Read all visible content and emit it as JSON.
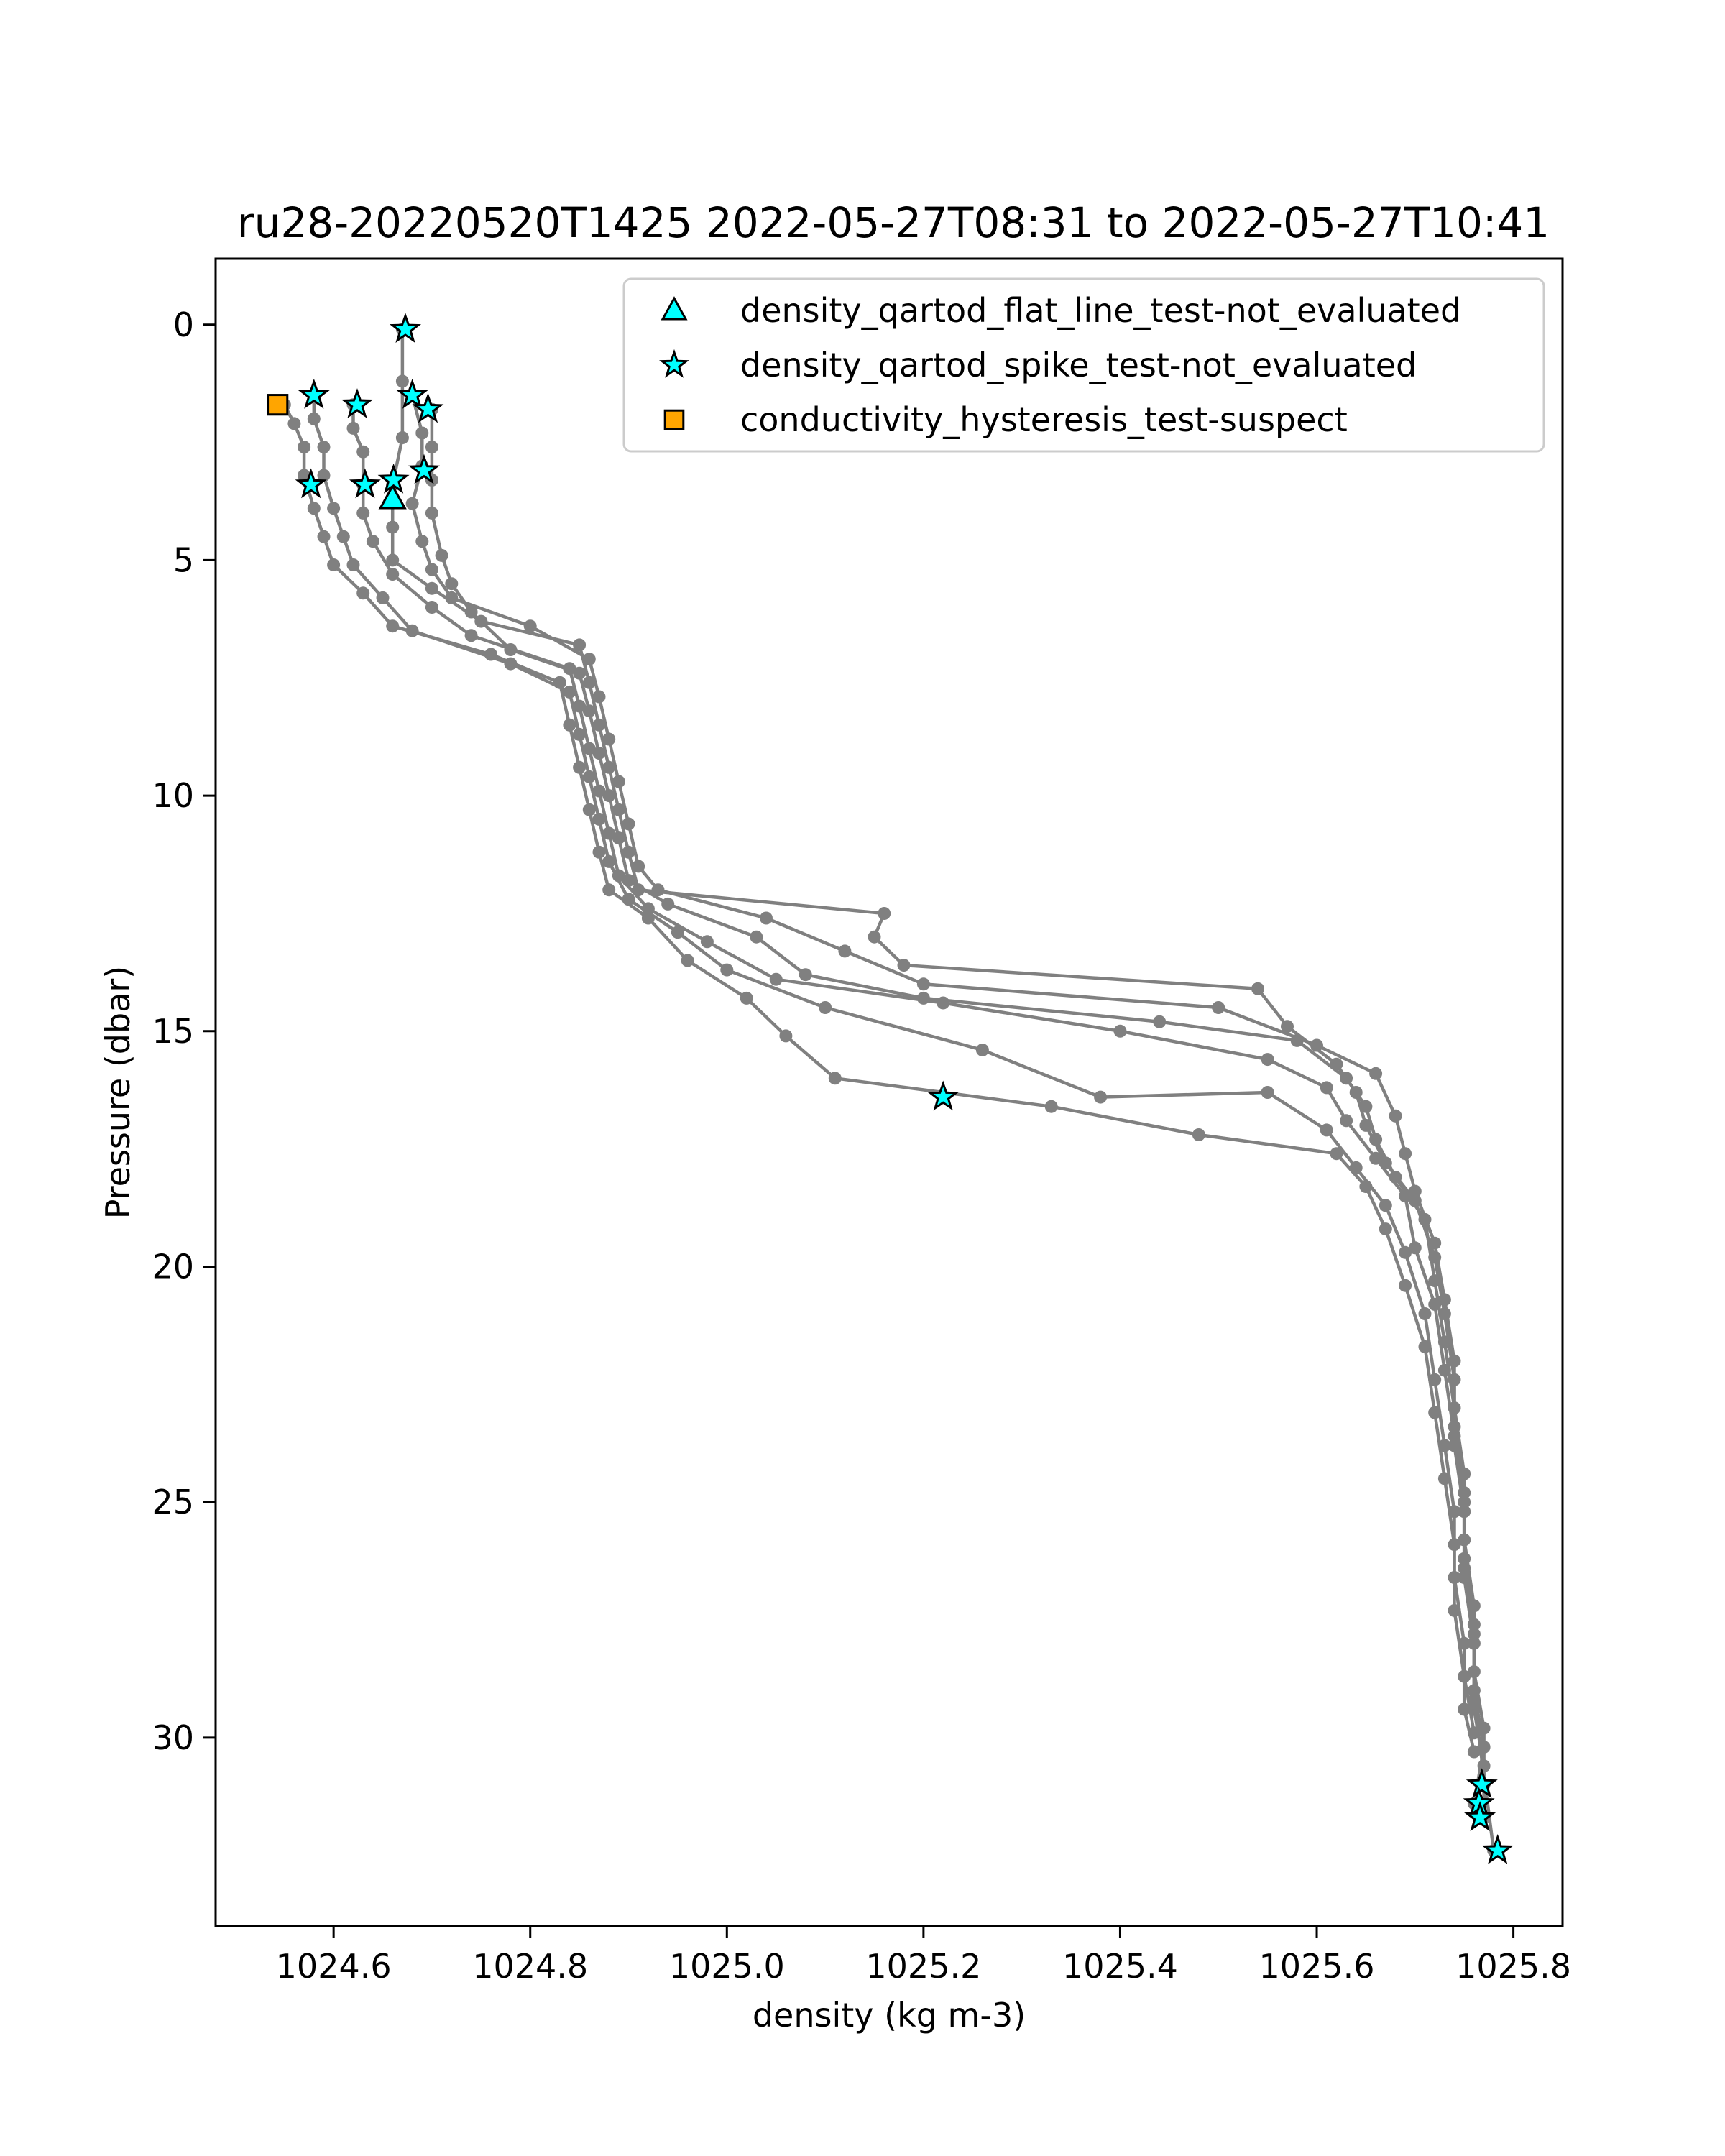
{
  "chart_data": {
    "type": "scatter",
    "title": "ru28-20220520T1425 2022-05-27T08:31 to 2022-05-27T10:41",
    "xlabel": "density (kg m-3)",
    "ylabel": "Pressure (dbar)",
    "xlim": [
      1024.48,
      1025.85
    ],
    "ylim": [
      34.0,
      -1.4
    ],
    "y_inverted": true,
    "xticks": [
      1024.6,
      1024.8,
      1025.0,
      1025.2,
      1025.4,
      1025.6,
      1025.8
    ],
    "xtick_labels": [
      "1024.6",
      "1024.8",
      "1025.0",
      "1025.2",
      "1025.4",
      "1025.6",
      "1025.8"
    ],
    "yticks": [
      0,
      5,
      10,
      15,
      20,
      25,
      30
    ],
    "ytick_labels": [
      "0",
      "5",
      "10",
      "15",
      "20",
      "25",
      "30"
    ],
    "grid": false,
    "legend_position": "top-right",
    "profile_color": "#808080",
    "profiles": [
      [
        [
          1024.67,
          0.1
        ],
        [
          1024.67,
          1.2
        ],
        [
          1024.67,
          2.4
        ],
        [
          1024.66,
          3.4
        ],
        [
          1024.66,
          4.3
        ],
        [
          1024.66,
          5.0
        ],
        [
          1024.7,
          5.6
        ],
        [
          1024.75,
          6.3
        ],
        [
          1024.85,
          6.8
        ],
        [
          1024.86,
          7.6
        ],
        [
          1024.87,
          8.5
        ],
        [
          1024.88,
          9.4
        ],
        [
          1024.89,
          10.3
        ],
        [
          1024.9,
          11.2
        ],
        [
          1024.91,
          12.0
        ],
        [
          1025.16,
          12.5
        ],
        [
          1025.15,
          13.0
        ],
        [
          1025.18,
          13.6
        ],
        [
          1025.54,
          14.1
        ],
        [
          1025.57,
          14.9
        ],
        [
          1025.62,
          15.7
        ],
        [
          1025.64,
          16.3
        ],
        [
          1025.65,
          17.0
        ],
        [
          1025.67,
          17.8
        ],
        [
          1025.7,
          18.6
        ],
        [
          1025.72,
          19.8
        ],
        [
          1025.73,
          21.0
        ],
        [
          1025.74,
          22.4
        ],
        [
          1025.74,
          23.8
        ],
        [
          1025.75,
          25.2
        ],
        [
          1025.75,
          26.6
        ],
        [
          1025.76,
          28.0
        ],
        [
          1025.76,
          29.4
        ],
        [
          1025.77,
          30.6
        ],
        [
          1025.77,
          31.0
        ]
      ],
      [
        [
          1024.68,
          1.5
        ],
        [
          1024.69,
          2.3
        ],
        [
          1024.69,
          3.0
        ],
        [
          1024.68,
          3.8
        ],
        [
          1024.69,
          4.6
        ],
        [
          1024.7,
          5.2
        ],
        [
          1024.72,
          5.8
        ],
        [
          1024.8,
          6.4
        ],
        [
          1024.86,
          7.1
        ],
        [
          1024.87,
          7.9
        ],
        [
          1024.88,
          8.8
        ],
        [
          1024.89,
          9.7
        ],
        [
          1024.9,
          10.6
        ],
        [
          1024.91,
          11.5
        ],
        [
          1024.93,
          12.0
        ],
        [
          1025.04,
          12.6
        ],
        [
          1025.12,
          13.3
        ],
        [
          1025.2,
          14.0
        ],
        [
          1025.5,
          14.5
        ],
        [
          1025.6,
          15.3
        ],
        [
          1025.66,
          15.9
        ],
        [
          1025.68,
          16.8
        ],
        [
          1025.69,
          17.6
        ],
        [
          1025.7,
          18.4
        ],
        [
          1025.72,
          19.5
        ],
        [
          1025.73,
          20.7
        ],
        [
          1025.74,
          22.0
        ],
        [
          1025.74,
          23.4
        ],
        [
          1025.75,
          24.8
        ],
        [
          1025.75,
          26.2
        ],
        [
          1025.76,
          27.6
        ],
        [
          1025.76,
          29.0
        ],
        [
          1025.77,
          30.2
        ],
        [
          1025.76,
          31.4
        ]
      ],
      [
        [
          1024.7,
          1.8
        ],
        [
          1024.7,
          2.6
        ],
        [
          1024.7,
          3.3
        ],
        [
          1024.7,
          4.0
        ],
        [
          1024.71,
          4.9
        ],
        [
          1024.72,
          5.5
        ],
        [
          1024.74,
          6.1
        ],
        [
          1024.78,
          6.9
        ],
        [
          1024.85,
          7.4
        ],
        [
          1024.86,
          8.2
        ],
        [
          1024.87,
          9.1
        ],
        [
          1024.88,
          10.0
        ],
        [
          1024.89,
          10.9
        ],
        [
          1024.9,
          11.8
        ],
        [
          1024.94,
          12.3
        ],
        [
          1025.03,
          13.0
        ],
        [
          1025.08,
          13.8
        ],
        [
          1025.2,
          14.3
        ],
        [
          1025.44,
          14.8
        ],
        [
          1025.58,
          15.2
        ],
        [
          1025.63,
          16.0
        ],
        [
          1025.65,
          16.6
        ],
        [
          1025.66,
          17.3
        ],
        [
          1025.68,
          18.1
        ],
        [
          1025.71,
          19.0
        ],
        [
          1025.72,
          20.3
        ],
        [
          1025.73,
          21.6
        ],
        [
          1025.74,
          23.0
        ],
        [
          1025.75,
          24.4
        ],
        [
          1025.75,
          25.8
        ],
        [
          1025.76,
          27.2
        ],
        [
          1025.76,
          28.6
        ],
        [
          1025.77,
          29.8
        ],
        [
          1025.77,
          31.7
        ]
      ],
      [
        [
          1024.62,
          1.7
        ],
        [
          1024.62,
          2.2
        ],
        [
          1024.63,
          2.7
        ],
        [
          1024.63,
          3.4
        ],
        [
          1024.63,
          4.0
        ],
        [
          1024.64,
          4.6
        ],
        [
          1024.66,
          5.3
        ],
        [
          1024.7,
          6.0
        ],
        [
          1024.74,
          6.6
        ],
        [
          1024.84,
          7.3
        ],
        [
          1024.85,
          8.1
        ],
        [
          1024.86,
          9.0
        ],
        [
          1024.87,
          9.9
        ],
        [
          1024.88,
          10.8
        ],
        [
          1024.89,
          11.7
        ],
        [
          1024.92,
          12.4
        ],
        [
          1024.98,
          13.1
        ],
        [
          1025.05,
          13.9
        ],
        [
          1025.22,
          14.4
        ],
        [
          1025.4,
          15.0
        ],
        [
          1025.55,
          15.6
        ],
        [
          1025.61,
          16.2
        ],
        [
          1025.63,
          16.9
        ],
        [
          1025.66,
          17.7
        ],
        [
          1025.69,
          18.5
        ],
        [
          1025.7,
          19.6
        ],
        [
          1025.72,
          20.8
        ],
        [
          1025.73,
          22.2
        ],
        [
          1025.74,
          23.6
        ],
        [
          1025.75,
          25.0
        ],
        [
          1025.75,
          26.4
        ],
        [
          1025.76,
          27.8
        ],
        [
          1025.76,
          29.2
        ],
        [
          1025.78,
          32.4
        ]
      ],
      [
        [
          1024.58,
          1.5
        ],
        [
          1024.58,
          2.0
        ],
        [
          1024.59,
          2.6
        ],
        [
          1024.59,
          3.2
        ],
        [
          1024.6,
          3.9
        ],
        [
          1024.61,
          4.5
        ],
        [
          1024.62,
          5.1
        ],
        [
          1024.65,
          5.8
        ],
        [
          1024.68,
          6.5
        ],
        [
          1024.78,
          7.2
        ],
        [
          1024.84,
          7.8
        ],
        [
          1024.85,
          8.7
        ],
        [
          1024.86,
          9.6
        ],
        [
          1024.87,
          10.5
        ],
        [
          1024.88,
          11.4
        ],
        [
          1024.9,
          12.2
        ],
        [
          1024.95,
          12.9
        ],
        [
          1025.0,
          13.7
        ],
        [
          1025.1,
          14.5
        ],
        [
          1025.26,
          15.4
        ],
        [
          1025.38,
          16.4
        ],
        [
          1025.55,
          16.3
        ],
        [
          1025.61,
          17.1
        ],
        [
          1025.64,
          17.9
        ],
        [
          1025.67,
          18.7
        ],
        [
          1025.69,
          19.7
        ],
        [
          1025.71,
          21.0
        ],
        [
          1025.72,
          22.4
        ],
        [
          1025.73,
          23.8
        ],
        [
          1025.74,
          25.2
        ],
        [
          1025.74,
          26.6
        ],
        [
          1025.75,
          28.0
        ],
        [
          1025.75,
          29.4
        ],
        [
          1025.76,
          30.3
        ]
      ],
      [
        [
          1024.55,
          1.7
        ],
        [
          1024.56,
          2.1
        ],
        [
          1024.57,
          2.6
        ],
        [
          1024.57,
          3.2
        ],
        [
          1024.58,
          3.9
        ],
        [
          1024.59,
          4.5
        ],
        [
          1024.6,
          5.1
        ],
        [
          1024.63,
          5.7
        ],
        [
          1024.66,
          6.4
        ],
        [
          1024.76,
          7.0
        ],
        [
          1024.83,
          7.6
        ],
        [
          1024.84,
          8.5
        ],
        [
          1024.85,
          9.4
        ],
        [
          1024.86,
          10.3
        ],
        [
          1024.87,
          11.2
        ],
        [
          1024.88,
          12.0
        ],
        [
          1024.92,
          12.6
        ],
        [
          1024.96,
          13.5
        ],
        [
          1025.02,
          14.3
        ],
        [
          1025.06,
          15.1
        ],
        [
          1025.11,
          16.0
        ],
        [
          1025.33,
          16.6
        ],
        [
          1025.48,
          17.2
        ],
        [
          1025.62,
          17.6
        ],
        [
          1025.65,
          18.3
        ],
        [
          1025.67,
          19.2
        ],
        [
          1025.69,
          20.4
        ],
        [
          1025.71,
          21.7
        ],
        [
          1025.72,
          23.1
        ],
        [
          1025.73,
          24.5
        ],
        [
          1025.74,
          25.9
        ],
        [
          1025.74,
          27.3
        ],
        [
          1025.75,
          28.7
        ],
        [
          1025.76,
          29.9
        ]
      ]
    ],
    "series": [
      {
        "name": "density_qartod_flat_line_test-not_evaluated",
        "marker": "triangle",
        "color": "#00ffff",
        "x": [
          1024.66,
          1024.66
        ],
        "y": [
          3.7,
          3.7
        ]
      },
      {
        "name": "density_qartod_spike_test-not_evaluated",
        "marker": "star",
        "color": "#00ffff",
        "x": [
          1024.673,
          1024.58,
          1024.624,
          1024.68,
          1024.696,
          1024.692,
          1024.661,
          1024.632,
          1024.577,
          1025.22,
          1025.768,
          1025.765,
          1025.766,
          1025.784
        ],
        "y": [
          0.1,
          1.5,
          1.7,
          1.5,
          1.8,
          3.1,
          3.3,
          3.4,
          3.4,
          16.4,
          31.0,
          31.4,
          31.7,
          32.4
        ]
      },
      {
        "name": "conductivity_hysteresis_test-suspect",
        "marker": "square",
        "color": "#ffa500",
        "x": [
          1024.543
        ],
        "y": [
          1.7
        ]
      }
    ]
  }
}
